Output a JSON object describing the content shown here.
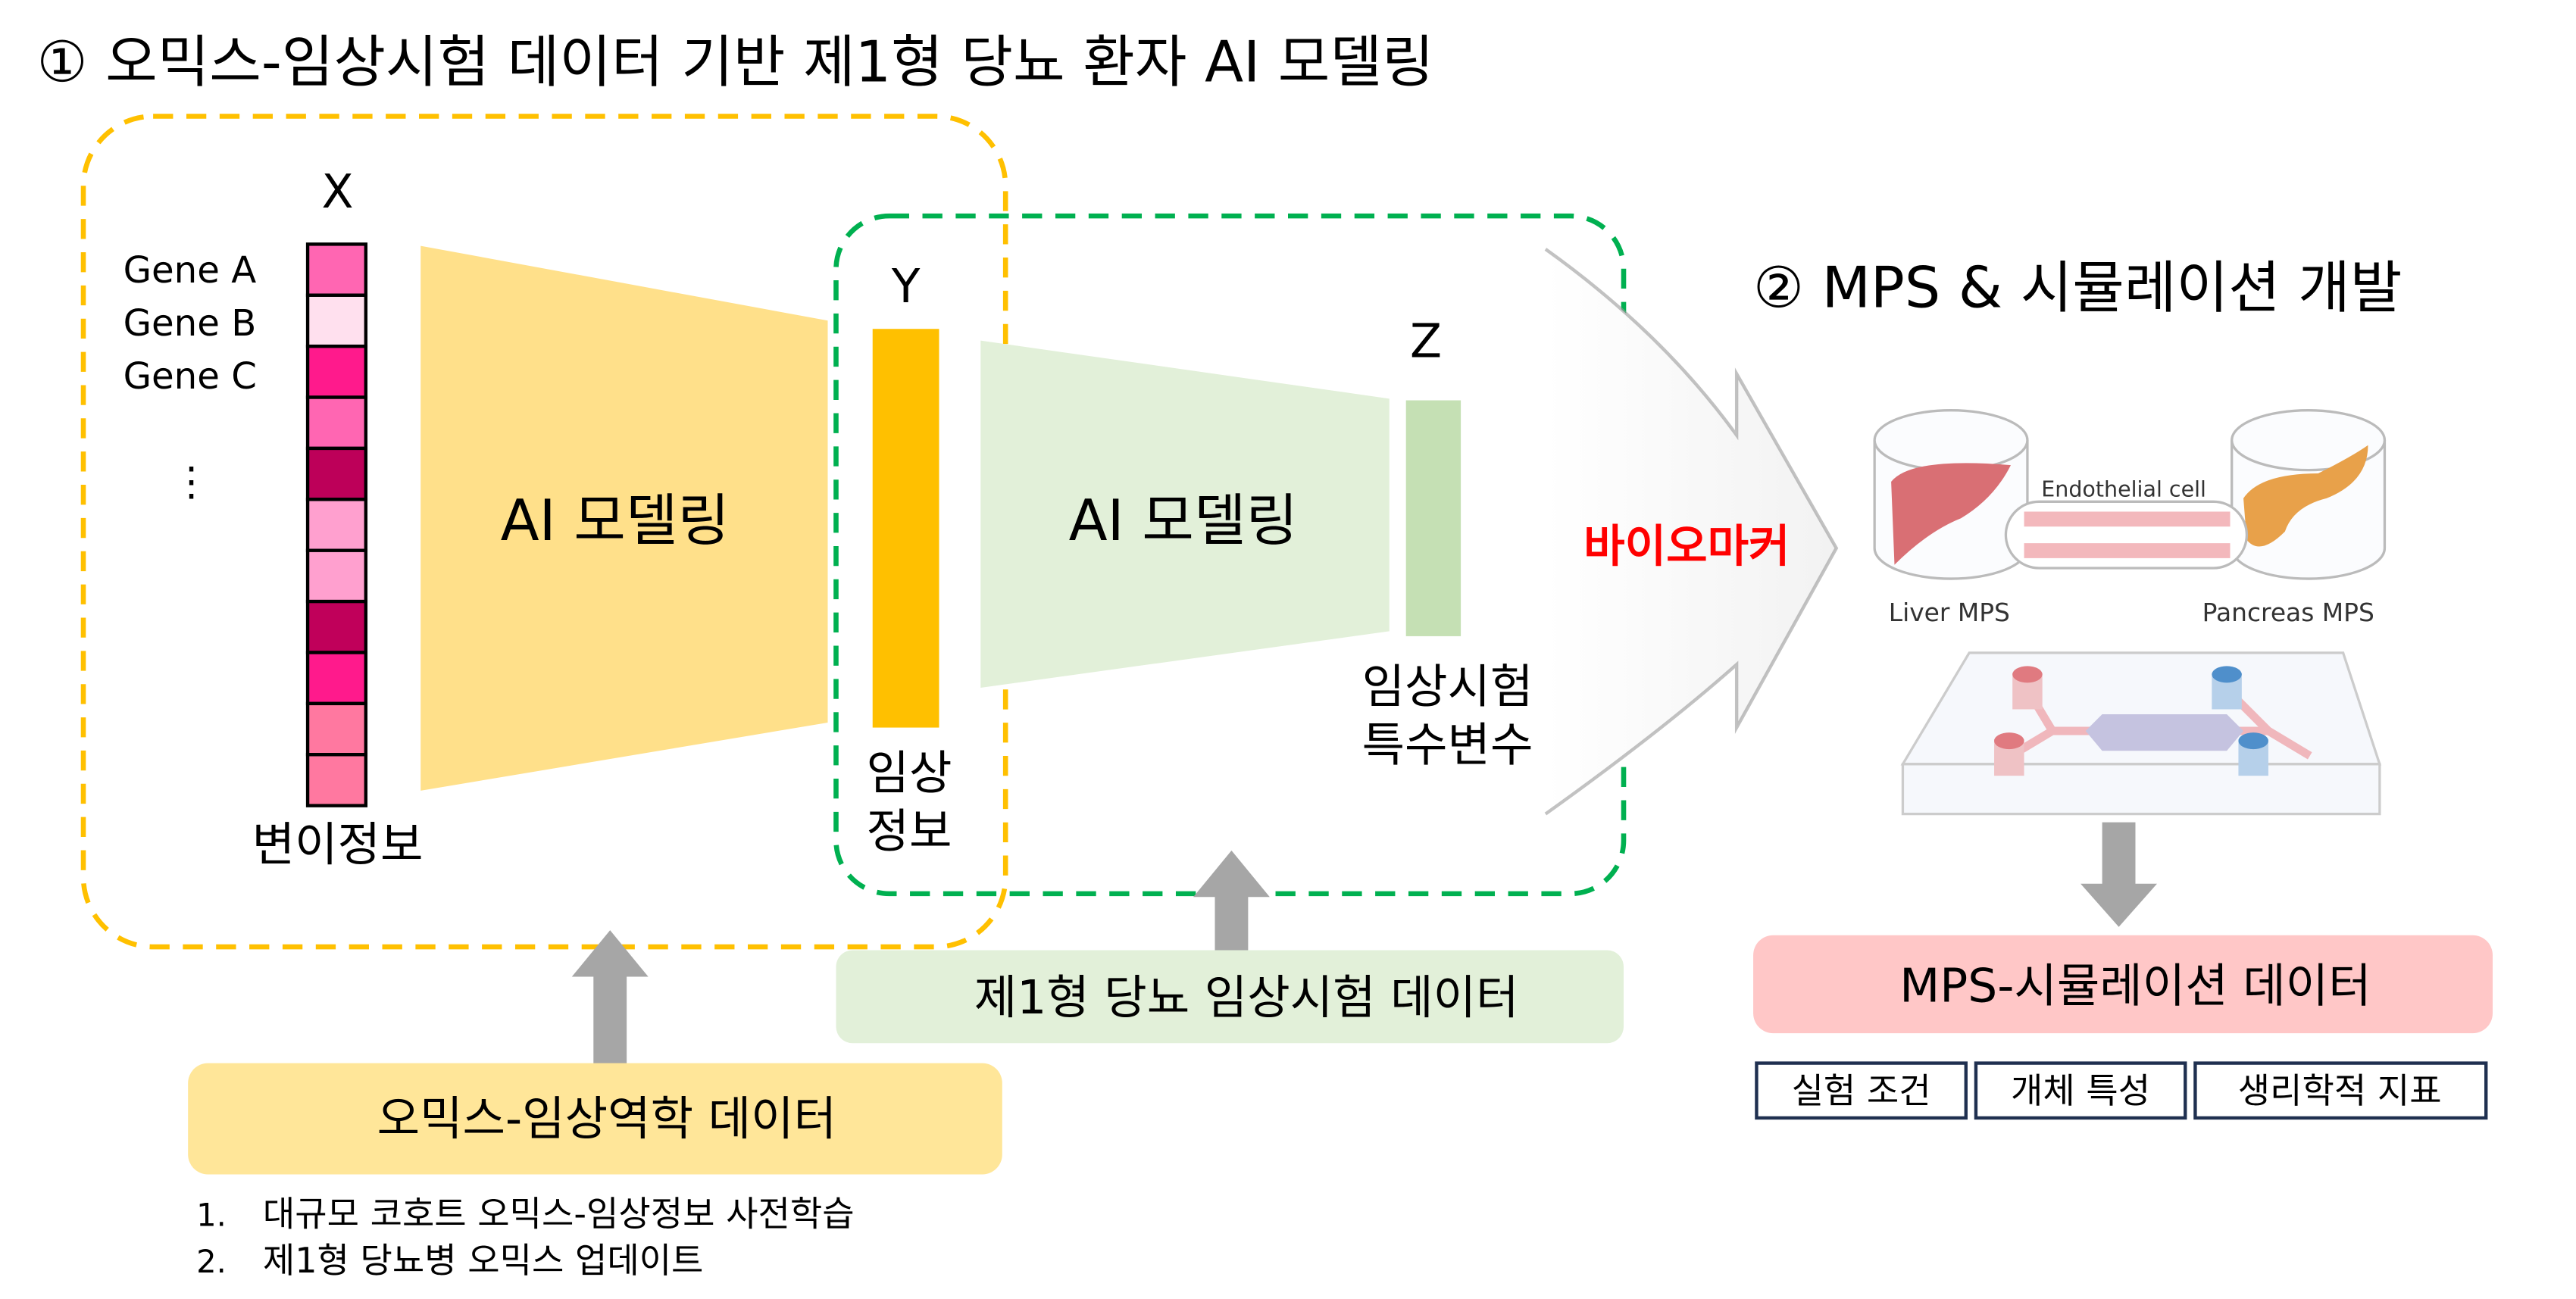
{
  "section1": {
    "title": "① 오믹스-임상시험 데이터 기반 제1형 당뇨 환자 AI 모델링",
    "x_label": "X",
    "genes": [
      "Gene A",
      "Gene B",
      "Gene C"
    ],
    "ellipsis": "⋮",
    "x_caption": "변이정보",
    "x_cell_colors": [
      "#FF66B2",
      "#FFE0EE",
      "#FF1A8C",
      "#FF66B2",
      "#BD0059",
      "#FFA0CF",
      "#FFA0CF",
      "#C0005A",
      "#FF1A8C",
      "#FF78A0",
      "#FF78A0"
    ],
    "model1_label": "AI 모델링",
    "y_label": "Y",
    "y_caption_line1": "임상",
    "y_caption_line2": "정보",
    "model2_label": "AI 모델링",
    "z_label": "Z",
    "z_caption_line1": "임상시험",
    "z_caption_line2": "특수변수",
    "biomarker_label": "바이오마커",
    "clinical_data_label": "제1형 당뇨 임상시험 데이터",
    "omics_data_label": "오믹스-임상역학 데이터",
    "steps": [
      "1.",
      "대규모 코호트 오믹스-임상정보 사전학습",
      "2.",
      "제1형 당뇨병 오믹스 업데이트"
    ]
  },
  "section2": {
    "title": "② MPS & 시뮬레이션 개발",
    "figure": {
      "endothelial_label": "Endothelial cell",
      "liver_label": "Liver MPS",
      "pancreas_label": "Pancreas MPS"
    },
    "data_label": "MPS-시뮬레이션 데이터",
    "tags": [
      "실험 조건",
      "개체 특성",
      "생리학적 지표"
    ]
  },
  "colors": {
    "yellow_dash": "#FFC000",
    "green_dash": "#00B050",
    "yellow_fill": "#FFE08A",
    "green_fill": "#E2F0D9",
    "biomarker_red": "#FF0000",
    "pink_box": "#FFC7C7",
    "arrow_gray": "#A6A6A6"
  }
}
